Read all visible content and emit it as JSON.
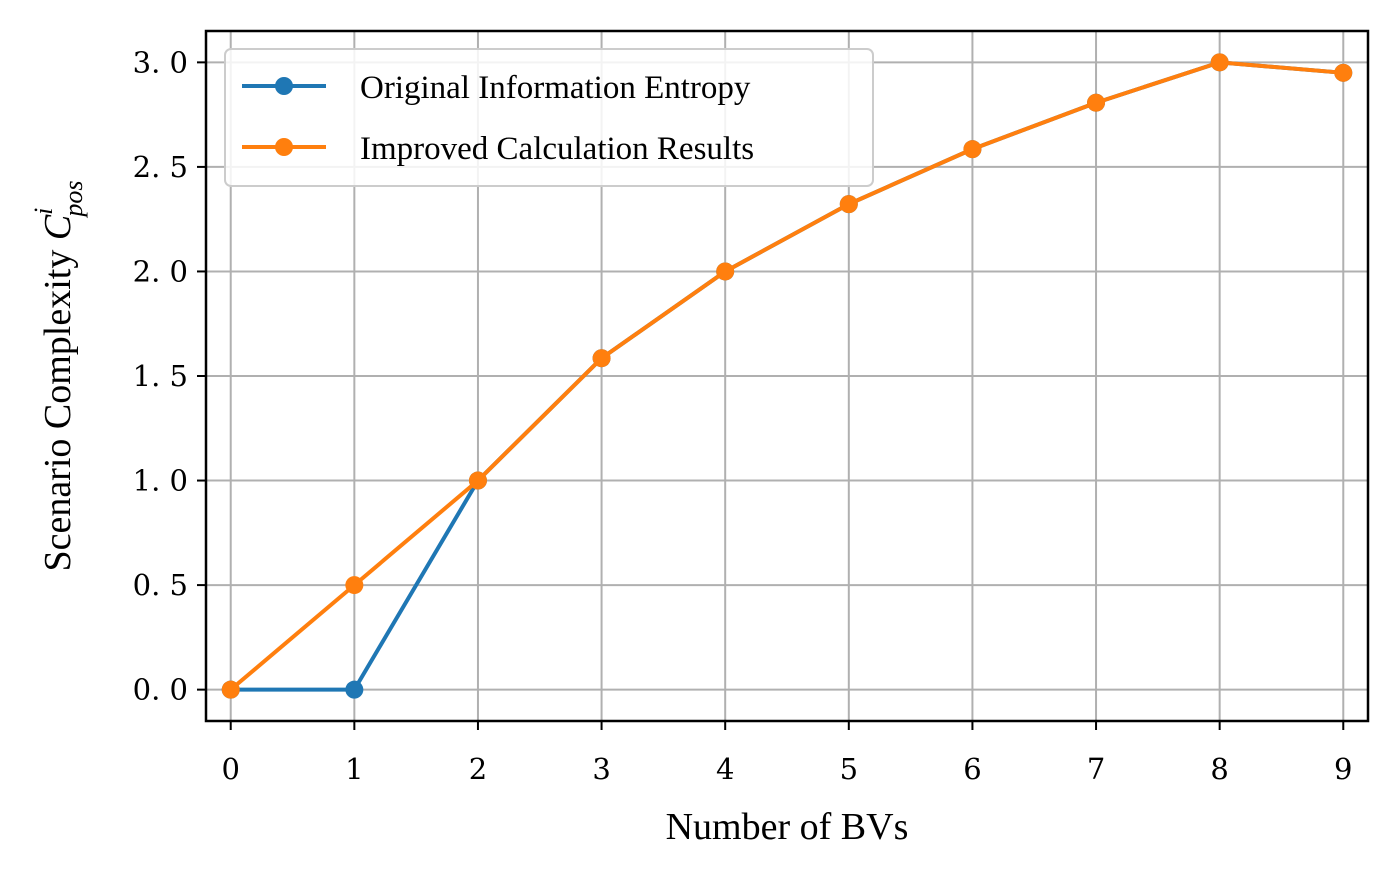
{
  "chart_data": {
    "type": "line",
    "title": "",
    "xlabel": "Number of BVs",
    "ylabel_main": "Scenario Complexity ",
    "ylabel_symbol": "C",
    "ylabel_superscript": "i",
    "ylabel_subscript": "pos",
    "x": [
      0,
      1,
      2,
      3,
      4,
      5,
      6,
      7,
      8,
      9
    ],
    "xlim": [
      -0.2,
      9.2
    ],
    "ylim": [
      -0.15,
      3.15
    ],
    "xticks": [
      0,
      1,
      2,
      3,
      4,
      5,
      6,
      7,
      8,
      9
    ],
    "xtick_labels": [
      "0",
      "1",
      "2",
      "3",
      "4",
      "5",
      "6",
      "7",
      "8",
      "9"
    ],
    "yticks": [
      0.0,
      0.5,
      1.0,
      1.5,
      2.0,
      2.5,
      3.0
    ],
    "ytick_labels": [
      "0. 0",
      "0. 5",
      "1. 0",
      "1. 5",
      "2. 0",
      "2. 5",
      "3. 0"
    ],
    "grid": true,
    "legend_position": "top-left",
    "series": [
      {
        "name": "Original Information Entropy",
        "color": "#1f77b4",
        "values": [
          0.0,
          0.0,
          1.0,
          1.585,
          2.0,
          2.322,
          2.585,
          2.807,
          3.0,
          2.95
        ]
      },
      {
        "name": "Improved Calculation Results",
        "color": "#ff7f0e",
        "values": [
          0.0,
          0.5,
          1.0,
          1.585,
          2.0,
          2.322,
          2.585,
          2.807,
          3.0,
          2.95
        ]
      }
    ]
  }
}
